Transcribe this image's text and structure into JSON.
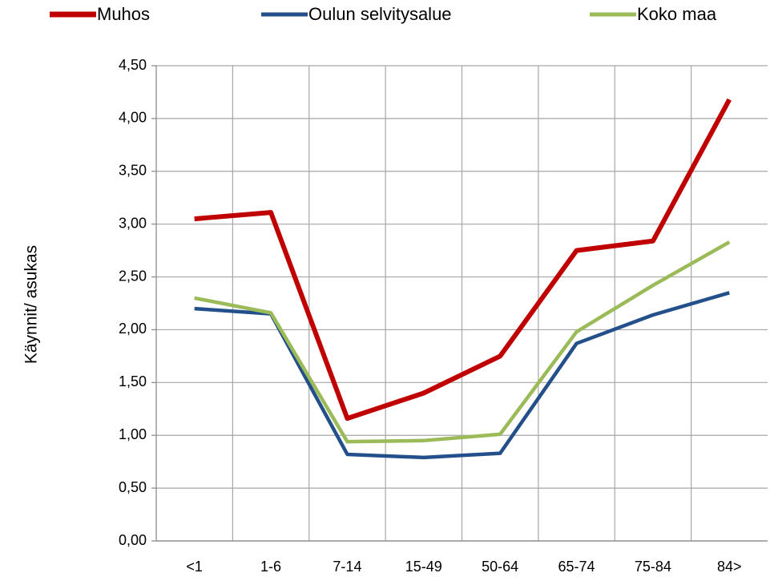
{
  "chart_data": {
    "type": "line",
    "y_label": "Käynnit/ asukas",
    "categories": [
      "<1",
      "1-6",
      "7-14",
      "15-49",
      "50-64",
      "65-74",
      "75-84",
      "84>"
    ],
    "series": [
      {
        "name": "Muhos",
        "color": "#c00000",
        "values": [
          3.05,
          3.11,
          1.16,
          1.4,
          1.75,
          2.75,
          2.84,
          4.18
        ]
      },
      {
        "name": "Oulun selvitysalue",
        "color": "#23508a",
        "values": [
          2.2,
          2.15,
          0.82,
          0.79,
          0.83,
          1.87,
          2.14,
          2.35
        ]
      },
      {
        "name": "Koko maa",
        "color": "#9bbb59",
        "values": [
          2.3,
          2.16,
          0.94,
          0.95,
          1.01,
          1.98,
          2.42,
          2.83
        ]
      }
    ],
    "ylim": [
      0,
      4.5
    ],
    "yticks": [
      {
        "value": 0,
        "label": "0,00"
      },
      {
        "value": 0.5,
        "label": "0,50"
      },
      {
        "value": 1,
        "label": "1,00"
      },
      {
        "value": 1.5,
        "label": "1,50"
      },
      {
        "value": 2,
        "label": "2,00"
      },
      {
        "value": 2.5,
        "label": "2,50"
      },
      {
        "value": 3,
        "label": "3,00"
      },
      {
        "value": 3.5,
        "label": "3,50"
      },
      {
        "value": 4,
        "label": "4,00"
      },
      {
        "value": 4.5,
        "label": "4,50"
      }
    ],
    "grid": true,
    "legend": "top"
  }
}
